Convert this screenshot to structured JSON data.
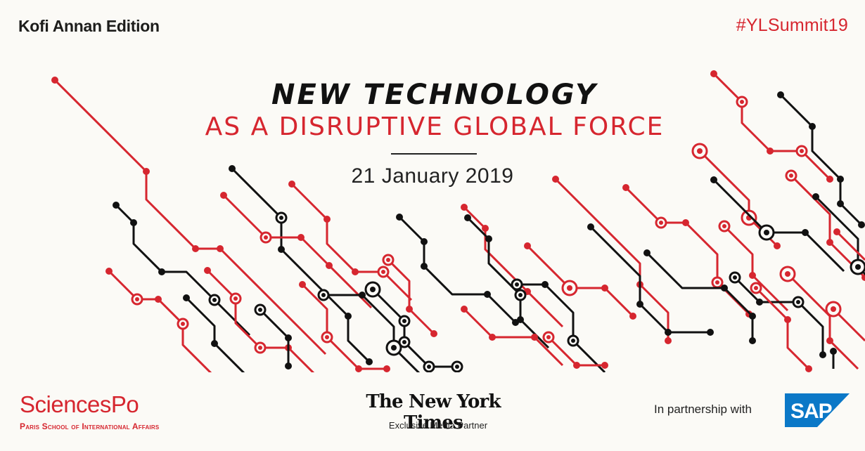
{
  "edition": "Kofi Annan Edition",
  "hashtag": "#YLSummit19",
  "title": {
    "line1": "NEW TECHNOLOGY",
    "line2": "AS A DISRUPTIVE GLOBAL FORCE"
  },
  "date": "21 January 2019",
  "partners": {
    "sciencespo": {
      "name": "SciencesPo",
      "subtitle": "Paris School of International Affairs"
    },
    "nyt": {
      "name": "The New York Times",
      "subtitle": "Exclusive Media Partner"
    },
    "partnership_text": "In partnership with",
    "sap": {
      "logo_text": "SAP"
    }
  },
  "colors": {
    "red": "#d6262f",
    "black": "#111111",
    "background": "#fbfaf6",
    "sap_blue": "#0b78c7"
  },
  "decoration": "circuit-lines-pattern"
}
